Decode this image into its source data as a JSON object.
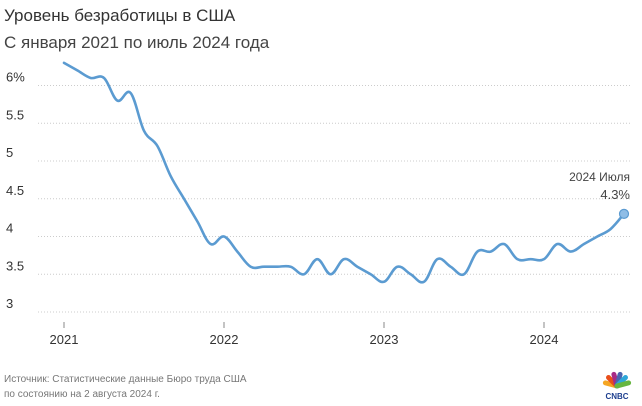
{
  "header": {
    "title": "Уровень безработицы в США",
    "subtitle": "С января 2021 по июль 2024 года"
  },
  "footer": {
    "source_line1": "Источник: Статистические данные Бюро труда США",
    "source_line2": "по состоянию на 2 августа 2024 г.",
    "logo_label": "CNBC"
  },
  "colors": {
    "line": "#5b9bd1",
    "grid": "#cccccc",
    "axis_text": "#333333",
    "logo_peacock": [
      "#f5a623",
      "#e94e1b",
      "#a72b86",
      "#4a64b0",
      "#2fa7d9",
      "#67b640"
    ]
  },
  "chart_data": {
    "type": "line",
    "title": "Уровень безработицы в США",
    "subtitle": "С января 2021 по июль 2024 года",
    "xlabel": "",
    "ylabel": "",
    "ylim": [
      3,
      6.5
    ],
    "y_ticks": [
      3,
      3.5,
      4,
      4.5,
      5,
      5.5,
      6
    ],
    "y_tick_labels": [
      "3",
      "3.5",
      "4",
      "4.5",
      "5",
      "5.5",
      "6%"
    ],
    "x_ticks": [
      2021,
      2022,
      2023,
      2024
    ],
    "x_tick_labels": [
      "2021",
      "2022",
      "2023",
      "2024"
    ],
    "grid": true,
    "series": [
      {
        "name": "Уровень безработицы",
        "start": "2021-01",
        "values": [
          6.3,
          6.2,
          6.1,
          6.1,
          5.8,
          5.9,
          5.4,
          5.2,
          4.8,
          4.5,
          4.2,
          3.9,
          4.0,
          3.8,
          3.6,
          3.6,
          3.6,
          3.6,
          3.5,
          3.7,
          3.5,
          3.7,
          3.6,
          3.5,
          3.4,
          3.6,
          3.5,
          3.4,
          3.7,
          3.6,
          3.5,
          3.8,
          3.8,
          3.9,
          3.7,
          3.7,
          3.7,
          3.9,
          3.8,
          3.9,
          4.0,
          4.1,
          4.3
        ]
      }
    ],
    "annotation": {
      "line1": "2024 Июля",
      "line2": "4.3%"
    }
  }
}
